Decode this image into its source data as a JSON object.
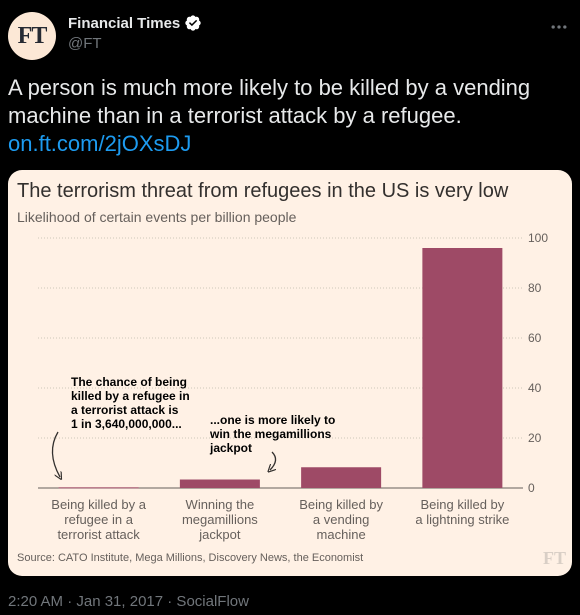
{
  "header": {
    "avatar_text": "FT",
    "display_name": "Financial Times",
    "handle": "@FT"
  },
  "tweet": {
    "text": "A person is much more likely to be killed by a vending machine than in a terrorist attack by a refugee.",
    "link": "on.ft.com/2jOXsDJ"
  },
  "chart_data": {
    "type": "bar",
    "title": "The terrorism threat from refugees in the US is very low",
    "subtitle": "Likelihood of certain events per billion people",
    "categories": [
      [
        "Being killed by a",
        "refugee in a",
        "terrorist attack"
      ],
      [
        "Winning the",
        "megamillions",
        "jackpot"
      ],
      [
        "Being killed by",
        "a vending",
        "machine"
      ],
      [
        "Being killed by",
        "a lightning strike"
      ]
    ],
    "values": [
      0.27,
      3.4,
      8.3,
      96
    ],
    "ylim": [
      0,
      100
    ],
    "yticks": [
      0,
      20,
      40,
      60,
      80,
      100
    ],
    "bar_color": "#9e4a66",
    "grid": true,
    "annotations": [
      [
        "The chance of being",
        "killed by a refugee in",
        "a terrorist attack is",
        "1 in 3,640,000,000..."
      ],
      [
        "...one is more likely to",
        "win the megamillions",
        "jackpot"
      ]
    ],
    "source": "Source: CATO Institute, Mega Millions, Discovery News, the Economist",
    "watermark": "FT"
  },
  "footer": {
    "timestamp": "2:20 AM · Jan 31, 2017 · SocialFlow"
  }
}
